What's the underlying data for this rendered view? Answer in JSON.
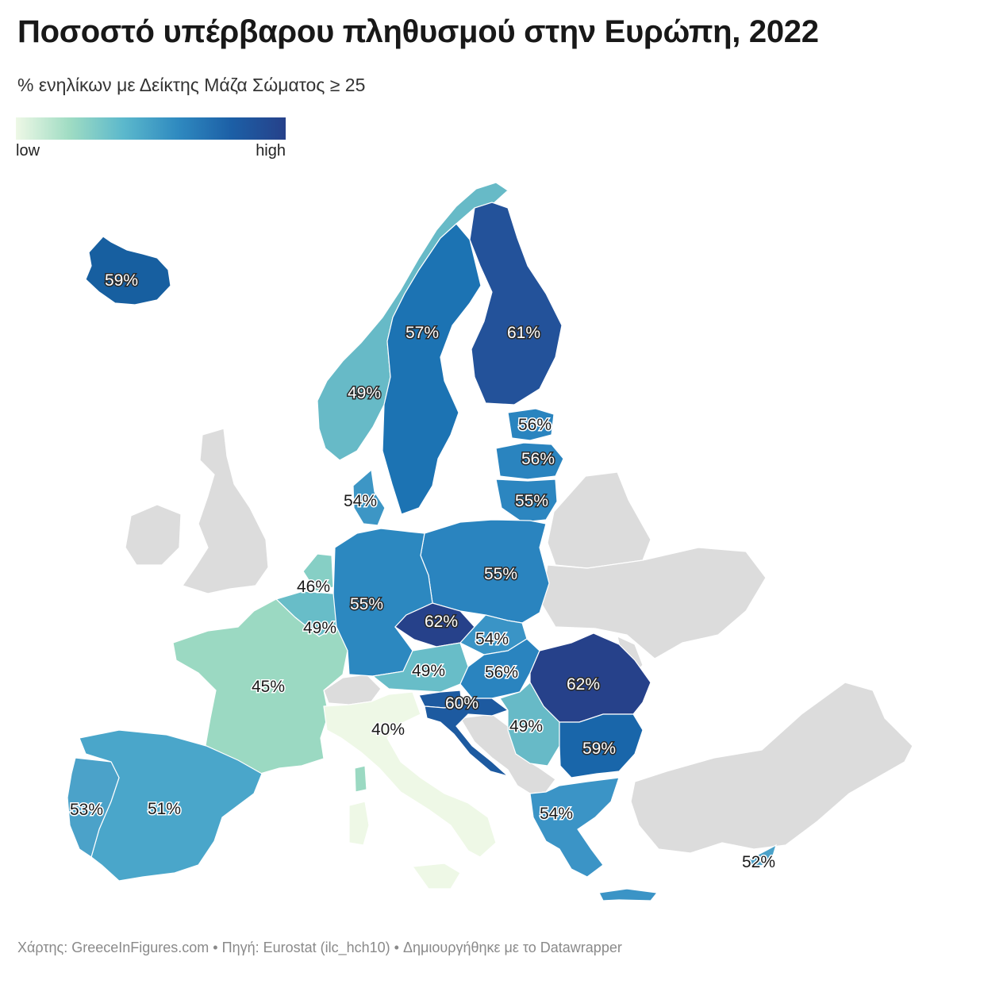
{
  "title": "Ποσοστό υπέρβαρου πληθυσμού στην Ευρώπη, 2022",
  "subtitle": "% ενηλίκων με Δείκτης Μάζα Σώματος ≥ 25",
  "legend": {
    "low": "low",
    "high": "high",
    "gradient": [
      "#eef8e6",
      "#9fdcc3",
      "#5bb8cc",
      "#2f8ac0",
      "#1c5fa6",
      "#26418a"
    ]
  },
  "footer": "Χάρτης: GreeceInFigures.com • Πηγή: Eurostat (ilc_hch10) • Δημιουργήθηκε με το Datawrapper",
  "colors": {
    "no_data": "#dcdcdc",
    "border": "#ffffff"
  },
  "countries": [
    {
      "name": "Iceland",
      "value": 59,
      "label": "59%",
      "color": "#175fa0"
    },
    {
      "name": "Norway",
      "value": 49,
      "label": "49%",
      "color": "#67bac7"
    },
    {
      "name": "Sweden",
      "value": 57,
      "label": "57%",
      "color": "#1c73b3"
    },
    {
      "name": "Finland",
      "value": 61,
      "label": "61%",
      "color": "#23529a"
    },
    {
      "name": "Estonia",
      "value": 56,
      "label": "56%",
      "color": "#2a84bf"
    },
    {
      "name": "Latvia",
      "value": 56,
      "label": "56%",
      "color": "#2a84bf"
    },
    {
      "name": "Lithuania",
      "value": 55,
      "label": "55%",
      "color": "#2c86c0"
    },
    {
      "name": "Denmark",
      "value": 54,
      "label": "54%",
      "color": "#3d96c5"
    },
    {
      "name": "Poland",
      "value": 55,
      "label": "55%",
      "color": "#2a84bf"
    },
    {
      "name": "Germany",
      "value": 55,
      "label": "55%",
      "color": "#2c88c0"
    },
    {
      "name": "Netherlands",
      "value": 46,
      "label": "46%",
      "color": "#86cfc5"
    },
    {
      "name": "Belgium",
      "value": 49,
      "label": "49%",
      "color": "#68bdc8"
    },
    {
      "name": "Czechia",
      "value": 62,
      "label": "62%",
      "color": "#26418a"
    },
    {
      "name": "Slovakia",
      "value": 54,
      "label": "54%",
      "color": "#3a94c6"
    },
    {
      "name": "Austria",
      "value": 49,
      "label": "49%",
      "color": "#68bdc8"
    },
    {
      "name": "Hungary",
      "value": 56,
      "label": "56%",
      "color": "#2a84bf"
    },
    {
      "name": "France",
      "value": 45,
      "label": "45%",
      "color": "#9bd9c2"
    },
    {
      "name": "Slovenia",
      "value": 60,
      "label": "60%",
      "color": "#1d5aa0"
    },
    {
      "name": "Croatia",
      "value": 60,
      "label": "60%",
      "color": "#1d5aa0"
    },
    {
      "name": "Romania",
      "value": 62,
      "label": "62%",
      "color": "#26418a"
    },
    {
      "name": "Serbia",
      "value": 49,
      "label": "49%",
      "color": "#67bac7"
    },
    {
      "name": "Bulgaria",
      "value": 59,
      "label": "59%",
      "color": "#1966aa"
    },
    {
      "name": "Italy",
      "value": 40,
      "label": "40%",
      "color": "#eef8e6"
    },
    {
      "name": "Spain",
      "value": 51,
      "label": "51%",
      "color": "#4aa6ca"
    },
    {
      "name": "Portugal",
      "value": 53,
      "label": "53%",
      "color": "#4ba2c9"
    },
    {
      "name": "Greece",
      "value": 54,
      "label": "54%",
      "color": "#3b94c6"
    },
    {
      "name": "Cyprus",
      "value": 52,
      "label": "52%",
      "color": "#4ba2c9"
    }
  ]
}
